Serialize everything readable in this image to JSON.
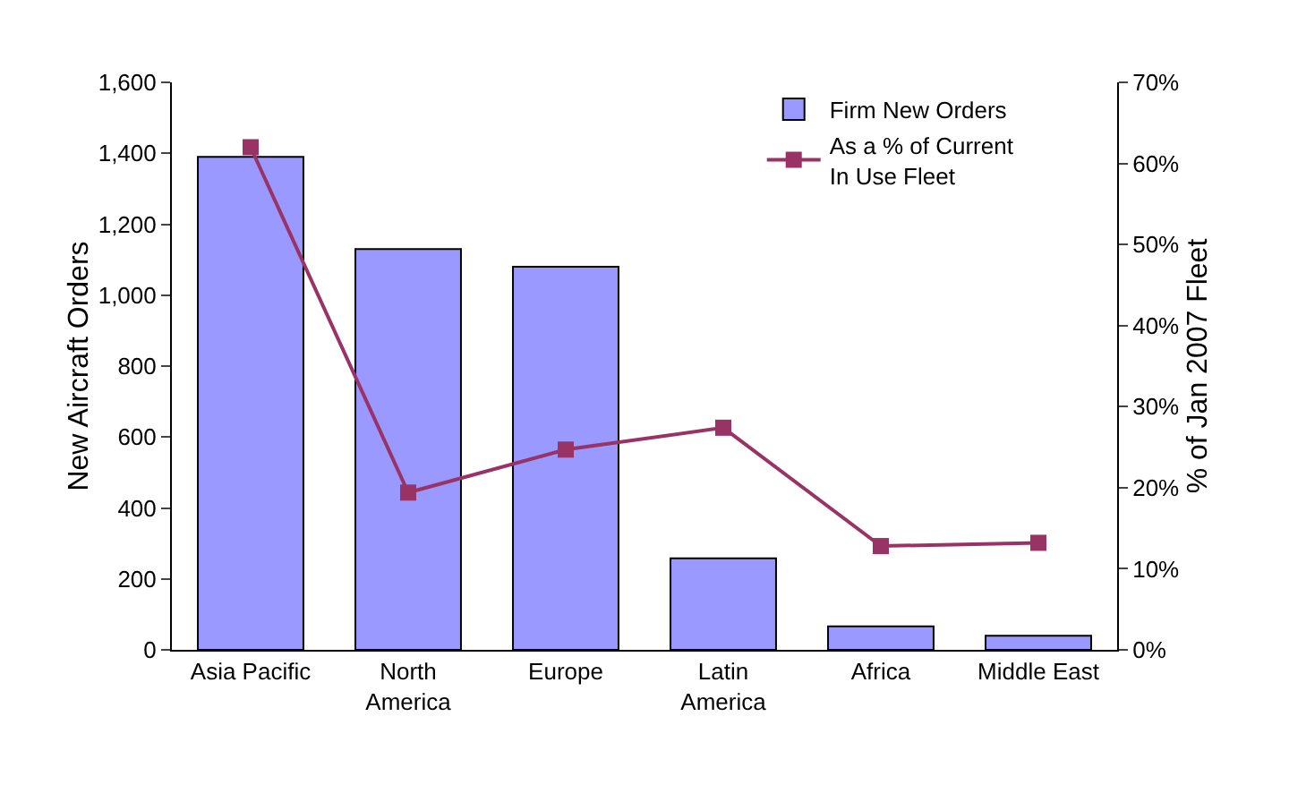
{
  "chart_data": {
    "type": "bar",
    "categories": [
      "Asia Pacific",
      "North America",
      "Europe",
      "Latin America",
      "Africa",
      "Middle East"
    ],
    "series": [
      {
        "name": "Firm New Orders",
        "color": "#9999ff",
        "values": [
          1390,
          1130,
          1080,
          258,
          66,
          40
        ]
      },
      {
        "name": "As a % of Current In Use Fleet",
        "type": "line",
        "axis": "y2",
        "color": "#993366",
        "marker": "square",
        "values": [
          62,
          19.4,
          24.7,
          27.4,
          12.8,
          13.2
        ]
      }
    ],
    "ylabel": "New Aircraft Orders",
    "y2label": "% of Jan 2007 Fleet",
    "ylim": [
      0,
      1600
    ],
    "yticks": [
      0,
      200,
      400,
      600,
      800,
      {
        "value": 1000,
        "label": "1,000"
      },
      {
        "value": 1200,
        "label": "1,200"
      },
      {
        "value": 1400,
        "label": "1,400"
      },
      {
        "value": 1600,
        "label": "1,600"
      }
    ],
    "y2lim": [
      0,
      70
    ],
    "y2ticks": [
      {
        "value": 0,
        "label": "0%"
      },
      {
        "value": 10,
        "label": "10%"
      },
      {
        "value": 20,
        "label": "20%"
      },
      {
        "value": 30,
        "label": "30%"
      },
      {
        "value": 40,
        "label": "40%"
      },
      {
        "value": 50,
        "label": "50%"
      },
      {
        "value": 60,
        "label": "60%"
      },
      {
        "value": 70,
        "label": "70%"
      }
    ],
    "grid": false,
    "legend": "top right"
  }
}
